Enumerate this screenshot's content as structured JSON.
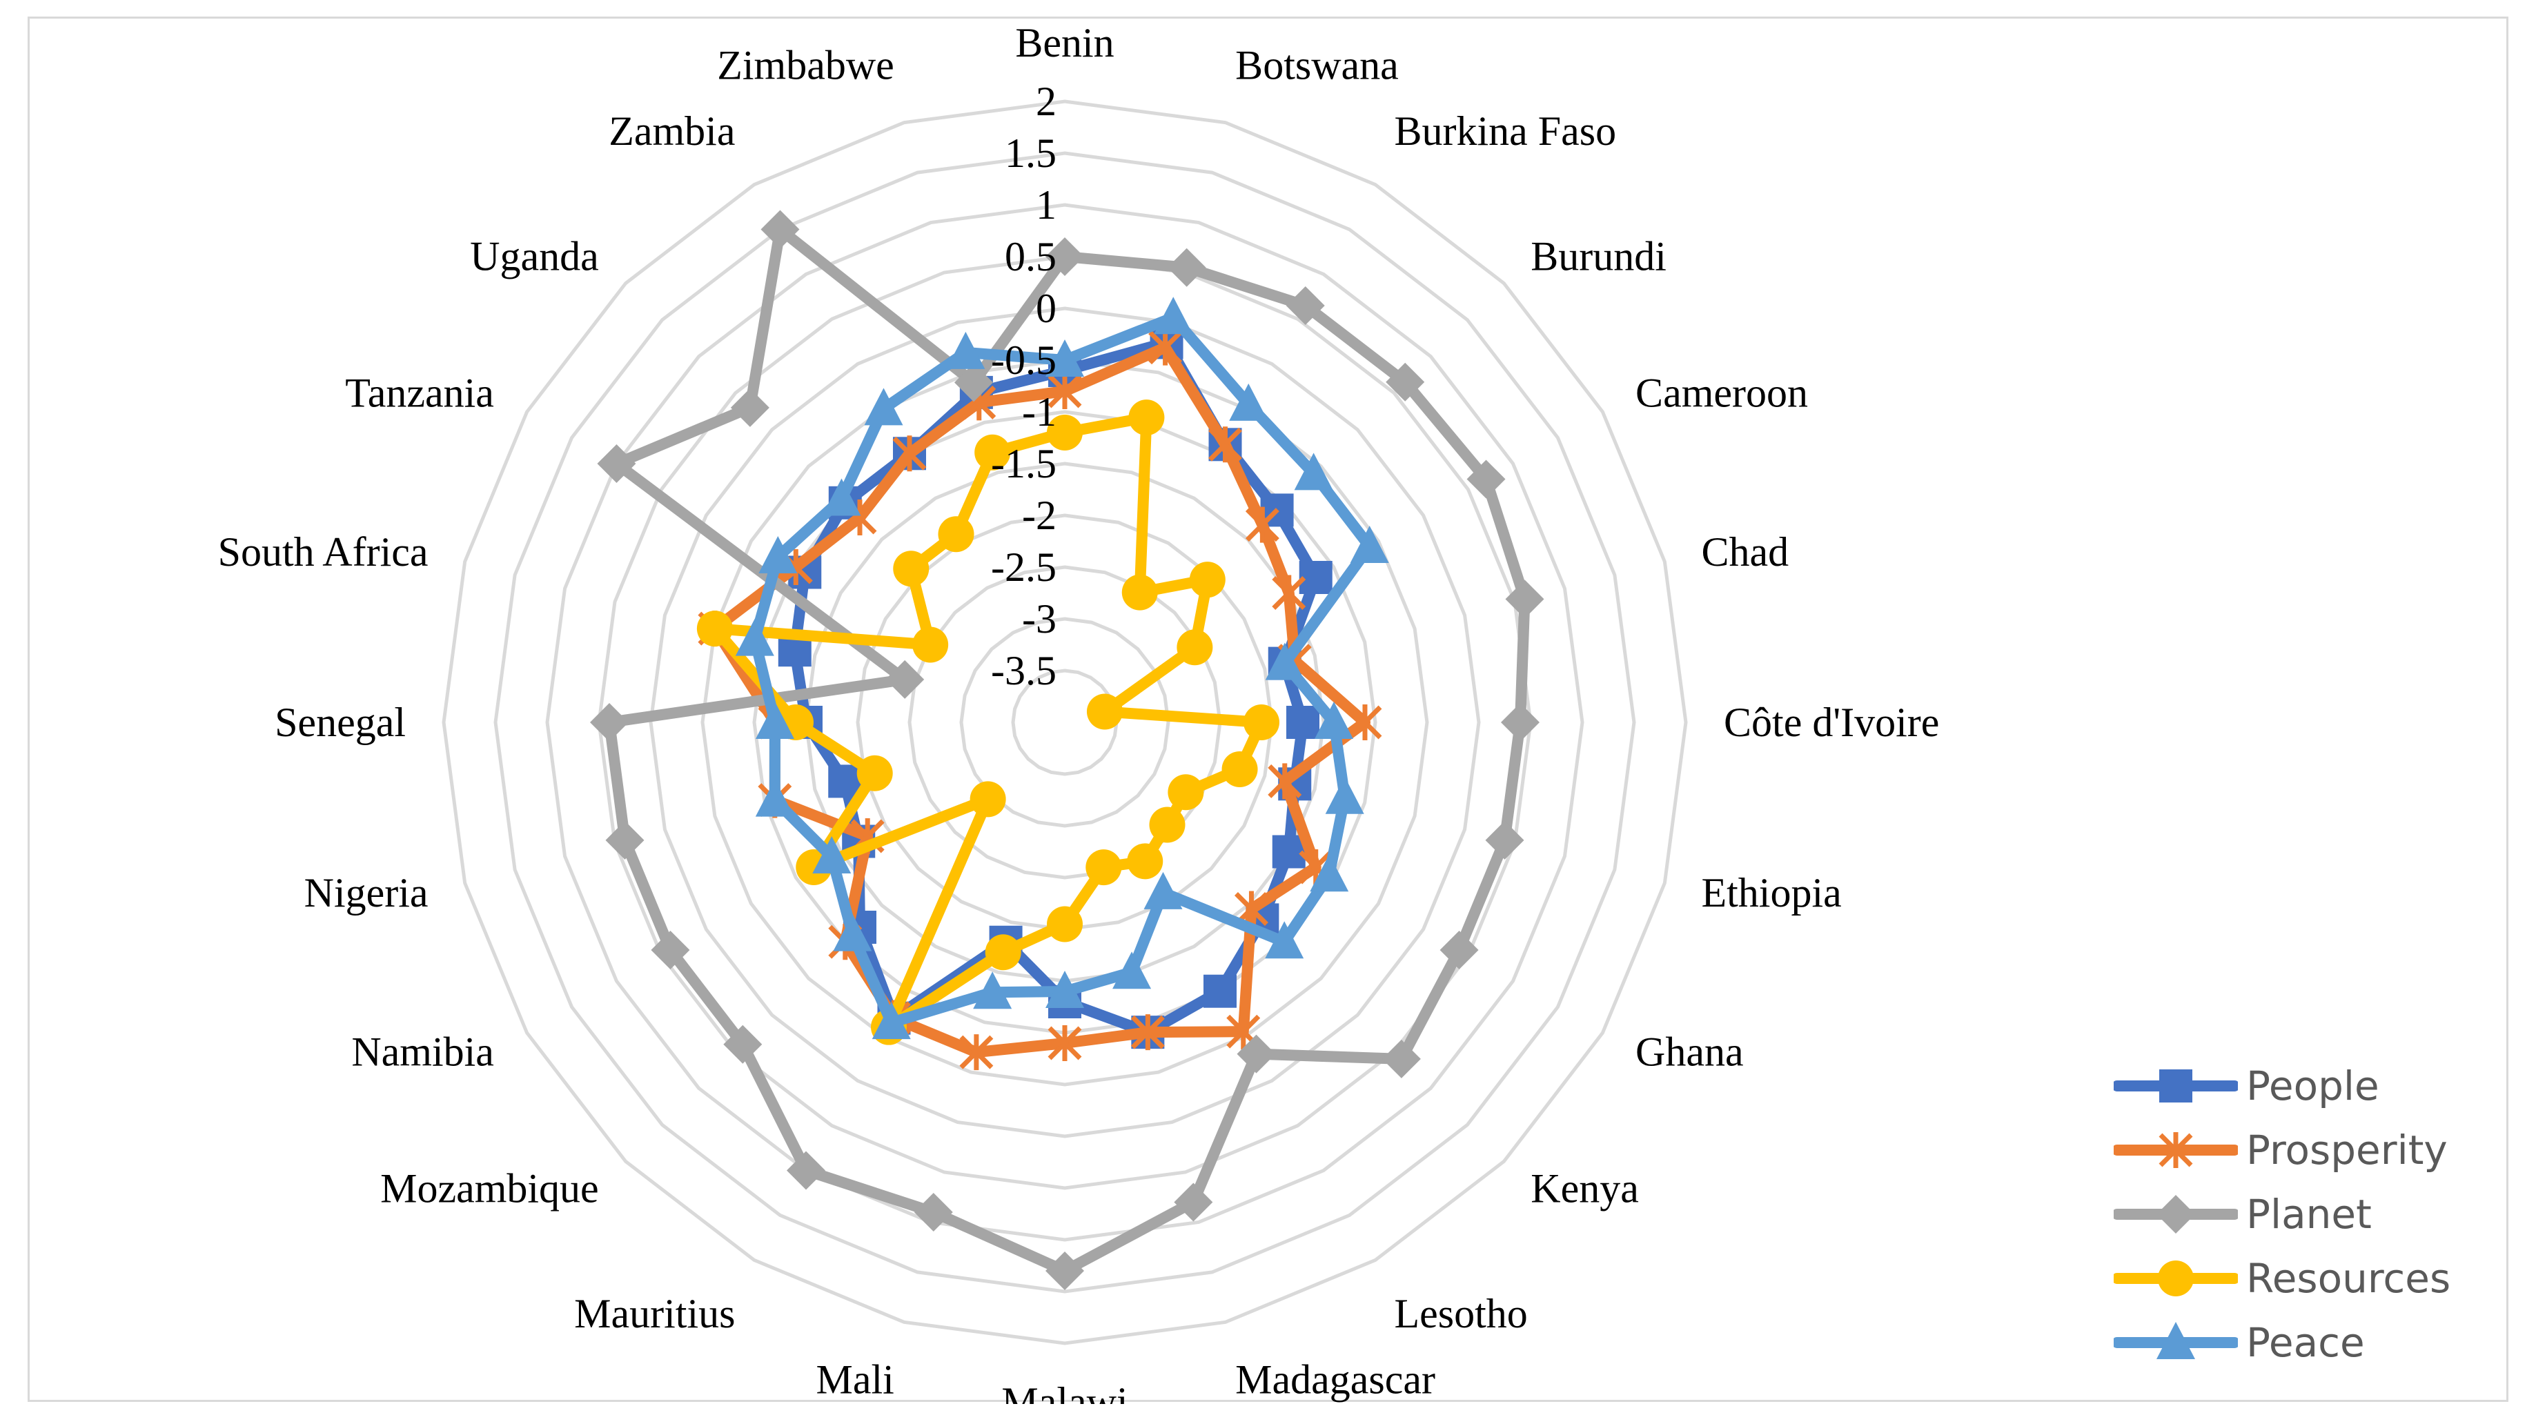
{
  "chart_data": {
    "type": "radar",
    "categories": [
      "Benin",
      "Botswana",
      "Burkina Faso",
      "Burundi",
      "Cameroon",
      "Chad",
      "Côte d'Ivoire",
      "Ethiopia",
      "Ghana",
      "Kenya",
      "Lesotho",
      "Madagascar",
      "Malawi",
      "Mali",
      "Mauritius",
      "Mozambique",
      "Namibia",
      "Nigeria",
      "Senegal",
      "South Africa",
      "Tanzania",
      "Uganda",
      "Zambia",
      "Zimbabwe"
    ],
    "axis_ticks": [
      "2",
      "1.5",
      "1",
      "0.5",
      "0",
      "-0.5",
      "-1",
      "-1.5",
      "-2",
      "-2.5",
      "-3",
      "-3.5"
    ],
    "rlim": [
      -4,
      2
    ],
    "grid": true,
    "legend_position": "bottom-right",
    "series": [
      {
        "name": "People",
        "color": "#4472c4",
        "marker": "square",
        "values": [
          -0.6,
          -0.2,
          -0.9,
          -1.1,
          -1.2,
          -1.8,
          -1.7,
          -1.7,
          -1.5,
          -1.3,
          -1.0,
          -0.9,
          -1.3,
          -1.8,
          -0.7,
          -1.2,
          -1.7,
          -1.8,
          -1.5,
          -1.3,
          -1.1,
          -1.0,
          -1.0,
          -0.7
        ]
      },
      {
        "name": "Prosperity",
        "color": "#ed7d31",
        "marker": "star",
        "values": [
          -0.8,
          -0.25,
          -0.9,
          -1.3,
          -1.5,
          -1.7,
          -1.1,
          -1.8,
          -1.2,
          -1.45,
          -0.55,
          -0.9,
          -0.9,
          -0.7,
          -0.7,
          -1.0,
          -1.8,
          -1.1,
          -1.2,
          -0.5,
          -1.0,
          -1.2,
          -1.0,
          -0.8
        ]
      },
      {
        "name": "Planet",
        "color": "#a5a5a5",
        "marker": "diamond",
        "values": [
          0.5,
          0.55,
          0.65,
          0.65,
          0.7,
          0.6,
          0.4,
          0.4,
          0.4,
          0.6,
          -0.3,
          0.8,
          1.3,
          0.9,
          1.0,
          0.4,
          0.4,
          0.4,
          0.4,
          -2.4,
          1.0,
          0.3,
          1.5,
          -0.6
        ]
      },
      {
        "name": "Resources",
        "color": "#ffc000",
        "marker": "circle",
        "values": [
          -1.2,
          -0.95,
          -2.55,
          -2.05,
          -2.55,
          -3.6,
          -2.1,
          -2.25,
          -2.65,
          -2.6,
          -2.45,
          -2.55,
          -2.05,
          -1.7,
          -0.6,
          -2.95,
          -1.2,
          -2.1,
          -1.4,
          -0.5,
          -2.5,
          -1.9,
          -1.9,
          -1.3
        ]
      },
      {
        "name": "Peace",
        "color": "#5b9bd5",
        "marker": "triangle",
        "values": [
          -0.5,
          0.05,
          -0.45,
          -0.6,
          -0.6,
          -1.8,
          -1.4,
          -1.2,
          -1.05,
          -1.0,
          -2.1,
          -1.5,
          -1.4,
          -1.3,
          -0.65,
          -1.1,
          -1.4,
          -1.1,
          -1.2,
          -0.9,
          -0.8,
          -0.95,
          -0.5,
          -0.3
        ]
      }
    ]
  }
}
